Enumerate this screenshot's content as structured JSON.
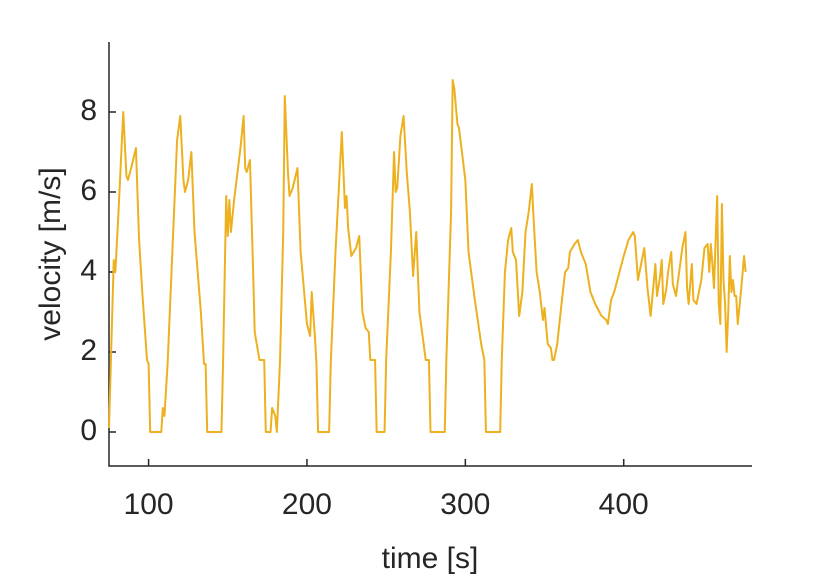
{
  "chart_data": {
    "type": "line",
    "xlabel": "time [s]",
    "ylabel": "velocity [m/s]",
    "xlim": [
      75,
      481
    ],
    "ylim": [
      -0.85,
      9.75
    ],
    "xticks": [
      100,
      200,
      300,
      400
    ],
    "yticks": [
      0,
      2,
      4,
      6,
      8
    ],
    "grid": false,
    "series": [
      {
        "color": "#edb120",
        "x": [
          75,
          78,
          79,
          81,
          84,
          86,
          87,
          89,
          92,
          94,
          96,
          99,
          100,
          101,
          108,
          109,
          110,
          112,
          115,
          118,
          120,
          122,
          123,
          125,
          127,
          129,
          133,
          135,
          136,
          137,
          146,
          147,
          149,
          150,
          151,
          152,
          154,
          158,
          160,
          161,
          162,
          164,
          166,
          167,
          170,
          173,
          174,
          177,
          178,
          180,
          181,
          183,
          185,
          186,
          188,
          189,
          191,
          194,
          196,
          200,
          202,
          203,
          205,
          206,
          207,
          214,
          215,
          218,
          222,
          224,
          225,
          226,
          228,
          231,
          233,
          235,
          237,
          239,
          240,
          243,
          244,
          249,
          250,
          253,
          255,
          256,
          257,
          259,
          261,
          263,
          265,
          267,
          269,
          271,
          275,
          277,
          278,
          287,
          288,
          291,
          292,
          293,
          295,
          296,
          300,
          302,
          306,
          310,
          312,
          313,
          322,
          323,
          325,
          327,
          329,
          330,
          332,
          334,
          336,
          338,
          340,
          342,
          343,
          345,
          347,
          349,
          350,
          352,
          354,
          355,
          356,
          358,
          361,
          363,
          365,
          366,
          369,
          371,
          373,
          376,
          379,
          382,
          386,
          389,
          390,
          392,
          394,
          396,
          400,
          403,
          406,
          407,
          409,
          411,
          413,
          415,
          417,
          420,
          421,
          423,
          424,
          425,
          427,
          428,
          430,
          431,
          433,
          435,
          437,
          439,
          440,
          441,
          443,
          444,
          446,
          449,
          451,
          453,
          454,
          455,
          456,
          457,
          459,
          460,
          461,
          462,
          463,
          464,
          465,
          466,
          467,
          468,
          469,
          470,
          471,
          472,
          474,
          476,
          477
        ],
        "values": [
          0.1,
          4.3,
          4.0,
          5.5,
          8.0,
          6.4,
          6.3,
          6.6,
          7.1,
          4.8,
          3.5,
          1.8,
          1.7,
          0,
          0,
          0.6,
          0.4,
          1.7,
          4.5,
          7.3,
          7.9,
          6.3,
          6.0,
          6.3,
          7.0,
          5.0,
          3.0,
          1.7,
          1.7,
          0,
          0,
          1.7,
          5.9,
          4.9,
          5.8,
          5.0,
          5.8,
          7.1,
          7.9,
          6.6,
          6.5,
          6.8,
          4.0,
          2.5,
          1.8,
          1.8,
          0,
          0,
          0.6,
          0.4,
          0,
          1.8,
          5.0,
          8.4,
          6.5,
          5.9,
          6.1,
          6.6,
          4.5,
          2.7,
          2.4,
          3.5,
          2.4,
          1.7,
          0,
          0,
          1.7,
          4.5,
          7.5,
          5.6,
          5.9,
          5.1,
          4.4,
          4.6,
          4.9,
          3.0,
          2.6,
          2.5,
          1.8,
          1.8,
          0,
          0,
          1.8,
          4.5,
          7.0,
          6.0,
          6.1,
          7.4,
          7.9,
          6.5,
          5.5,
          3.9,
          5.0,
          3.0,
          1.8,
          1.8,
          0,
          0,
          1.8,
          5.5,
          8.8,
          8.6,
          7.7,
          7.6,
          6.3,
          4.5,
          3.3,
          2.2,
          1.8,
          0,
          0,
          1.8,
          4.0,
          4.8,
          5.1,
          4.5,
          4.3,
          2.9,
          3.5,
          5.0,
          5.5,
          6.2,
          5.4,
          4.0,
          3.5,
          2.8,
          3.1,
          2.2,
          2.1,
          1.8,
          1.8,
          2.2,
          3.3,
          4.0,
          4.1,
          4.5,
          4.7,
          4.8,
          4.5,
          4.2,
          3.5,
          3.2,
          2.9,
          2.8,
          2.7,
          3.3,
          3.5,
          3.8,
          4.4,
          4.8,
          5.0,
          4.9,
          3.8,
          4.2,
          4.6,
          3.6,
          2.9,
          4.2,
          3.4,
          3.9,
          4.3,
          3.2,
          3.6,
          4.0,
          4.5,
          3.7,
          3.4,
          4.0,
          4.6,
          5.0,
          3.6,
          3.2,
          4.2,
          3.3,
          3.2,
          3.8,
          4.6,
          4.7,
          4.0,
          4.7,
          4.2,
          3.6,
          5.9,
          3.2,
          2.7,
          5.7,
          3.8,
          3.2,
          2.0,
          3.0,
          4.4,
          3.5,
          3.8,
          3.4,
          3.4,
          2.7,
          3.5,
          4.4,
          4.0
        ]
      }
    ]
  }
}
